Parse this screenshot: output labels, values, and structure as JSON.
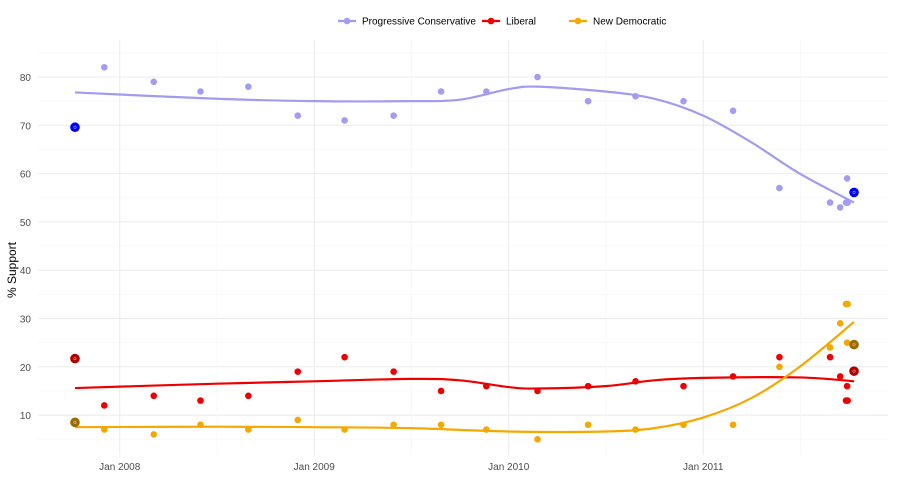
{
  "chart_data": {
    "type": "scatter",
    "title": "",
    "xlabel": "",
    "ylabel": "% Support",
    "ylim": [
      2,
      85
    ],
    "xlim": [
      "2007-09-01",
      "2011-11-15"
    ],
    "x_ticks": [
      {
        "date": "2008-01-01",
        "label": "Jan 2008"
      },
      {
        "date": "2009-01-01",
        "label": "Jan 2009"
      },
      {
        "date": "2010-01-01",
        "label": "Jan 2010"
      },
      {
        "date": "2011-01-01",
        "label": "Jan 2011"
      }
    ],
    "y_ticks": [
      10,
      20,
      30,
      40,
      50,
      60,
      70,
      80
    ],
    "grid": true,
    "legend_position": "top",
    "series": [
      {
        "name": "Progressive Conservative",
        "color": "#a49cf2",
        "line_color": "#a39bf0",
        "result_color": "#0000ff",
        "points": [
          [
            "2007-12-03",
            82
          ],
          [
            "2008-03-05",
            79
          ],
          [
            "2008-06-01",
            77
          ],
          [
            "2008-08-30",
            78
          ],
          [
            "2008-12-01",
            72
          ],
          [
            "2009-02-27",
            71
          ],
          [
            "2009-05-30",
            72
          ],
          [
            "2009-08-27",
            77
          ],
          [
            "2009-11-20",
            77
          ],
          [
            "2010-02-24",
            80
          ],
          [
            "2010-05-30",
            75
          ],
          [
            "2010-08-27",
            76
          ],
          [
            "2010-11-25",
            75
          ],
          [
            "2011-02-26",
            73
          ],
          [
            "2011-05-24",
            57
          ],
          [
            "2011-08-27",
            54
          ],
          [
            "2011-09-15",
            53
          ],
          [
            "2011-09-26",
            54
          ],
          [
            "2011-09-28",
            59
          ],
          [
            "2011-09-29",
            54
          ]
        ],
        "results": [
          [
            "2007-10-09",
            69.6
          ],
          [
            "2011-10-11",
            56.1
          ]
        ],
        "trend": [
          [
            "2007-10-09",
            76.8
          ],
          [
            "2008-07-01",
            75.5
          ],
          [
            "2009-01-01",
            75
          ],
          [
            "2009-07-01",
            75
          ],
          [
            "2009-10-01",
            75.3
          ],
          [
            "2010-01-01",
            77.5
          ],
          [
            "2010-02-24",
            78
          ],
          [
            "2010-07-01",
            77
          ],
          [
            "2010-10-01",
            75.5
          ],
          [
            "2011-01-01",
            72
          ],
          [
            "2011-04-01",
            66.5
          ],
          [
            "2011-07-01",
            60
          ],
          [
            "2011-10-11",
            54
          ]
        ]
      },
      {
        "name": "Liberal",
        "color": "#ee0000",
        "line_color": "#ee0000",
        "result_color": "#b00000",
        "points": [
          [
            "2007-12-03",
            12
          ],
          [
            "2008-03-05",
            14
          ],
          [
            "2008-06-01",
            13
          ],
          [
            "2008-08-30",
            14
          ],
          [
            "2008-12-01",
            19
          ],
          [
            "2009-02-27",
            22
          ],
          [
            "2009-05-30",
            19
          ],
          [
            "2009-08-27",
            15
          ],
          [
            "2009-11-20",
            16
          ],
          [
            "2010-02-24",
            15
          ],
          [
            "2010-05-30",
            16
          ],
          [
            "2010-08-27",
            17
          ],
          [
            "2010-11-25",
            16
          ],
          [
            "2011-02-26",
            18
          ],
          [
            "2011-05-24",
            22
          ],
          [
            "2011-08-27",
            22
          ],
          [
            "2011-09-15",
            18
          ],
          [
            "2011-09-26",
            13
          ],
          [
            "2011-09-28",
            16
          ],
          [
            "2011-09-29",
            13
          ]
        ],
        "results": [
          [
            "2007-10-09",
            21.7
          ],
          [
            "2011-10-11",
            19.1
          ]
        ],
        "trend": [
          [
            "2007-10-09",
            15.6
          ],
          [
            "2008-07-01",
            16.5
          ],
          [
            "2009-01-01",
            17
          ],
          [
            "2009-07-01",
            17.5
          ],
          [
            "2009-10-01",
            17.2
          ],
          [
            "2010-01-01",
            15.8
          ],
          [
            "2010-02-24",
            15.5
          ],
          [
            "2010-07-01",
            16
          ],
          [
            "2010-10-01",
            17.2
          ],
          [
            "2011-01-01",
            17.7
          ],
          [
            "2011-07-01",
            17.8
          ],
          [
            "2011-10-11",
            17
          ]
        ]
      },
      {
        "name": "New Democratic",
        "color": "#f5a800",
        "line_color": "#f5a800",
        "result_color": "#9c6a00",
        "points": [
          [
            "2007-12-03",
            7
          ],
          [
            "2008-03-05",
            6
          ],
          [
            "2008-06-01",
            8
          ],
          [
            "2008-08-30",
            7
          ],
          [
            "2008-12-01",
            9
          ],
          [
            "2009-02-27",
            7
          ],
          [
            "2009-05-30",
            8
          ],
          [
            "2009-08-27",
            8
          ],
          [
            "2009-11-20",
            7
          ],
          [
            "2010-02-24",
            5
          ],
          [
            "2010-05-30",
            8
          ],
          [
            "2010-08-27",
            7
          ],
          [
            "2010-11-25",
            8
          ],
          [
            "2011-02-26",
            8
          ],
          [
            "2011-05-24",
            20
          ],
          [
            "2011-08-27",
            24
          ],
          [
            "2011-09-15",
            29
          ],
          [
            "2011-09-26",
            33
          ],
          [
            "2011-09-28",
            25
          ],
          [
            "2011-09-29",
            33
          ]
        ],
        "results": [
          [
            "2007-10-09",
            8.5
          ],
          [
            "2011-10-11",
            24.6
          ]
        ],
        "trend": [
          [
            "2007-10-09",
            7.5
          ],
          [
            "2008-07-01",
            7.6
          ],
          [
            "2009-01-01",
            7.5
          ],
          [
            "2009-07-01",
            7.3
          ],
          [
            "2010-01-01",
            6.6
          ],
          [
            "2010-07-01",
            6.6
          ],
          [
            "2010-10-01",
            7.3
          ],
          [
            "2011-01-01",
            9.5
          ],
          [
            "2011-04-01",
            13.5
          ],
          [
            "2011-07-01",
            20
          ],
          [
            "2011-10-11",
            29.3
          ]
        ]
      }
    ]
  }
}
